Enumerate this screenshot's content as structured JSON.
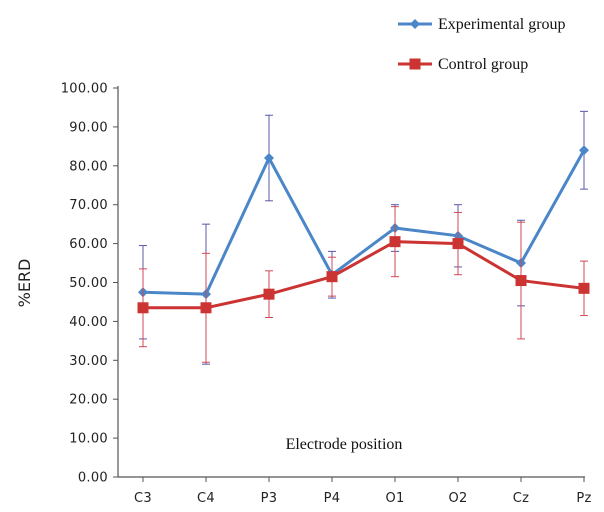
{
  "chart_data": {
    "type": "line",
    "title": "",
    "xlabel": "",
    "ylabel": "%ERD",
    "annotation": "Electrode position",
    "categories": [
      "C3",
      "C4",
      "P3",
      "P4",
      "O1",
      "O2",
      "Cz",
      "Pz"
    ],
    "ylim": [
      0,
      100
    ],
    "yticks": [
      "0.00",
      "10.00",
      "20.00",
      "30.00",
      "40.00",
      "50.00",
      "60.00",
      "70.00",
      "80.00",
      "90.00",
      "100.00"
    ],
    "grid": false,
    "legend_position": "top-right",
    "series": [
      {
        "name": "Experimental group",
        "color": "#4a86c8",
        "marker": "diamond",
        "values": [
          47.5,
          47.0,
          82.0,
          52.0,
          64.0,
          62.0,
          55.0,
          84.0
        ],
        "error": [
          12.0,
          18.0,
          11.0,
          6.0,
          6.0,
          8.0,
          11.0,
          10.0
        ]
      },
      {
        "name": "Control group",
        "color": "#cc3333",
        "marker": "square",
        "values": [
          43.5,
          43.5,
          47.0,
          51.5,
          60.5,
          60.0,
          50.5,
          48.5
        ],
        "error": [
          10.0,
          14.0,
          6.0,
          5.0,
          9.0,
          8.0,
          15.0,
          7.0
        ]
      }
    ]
  }
}
